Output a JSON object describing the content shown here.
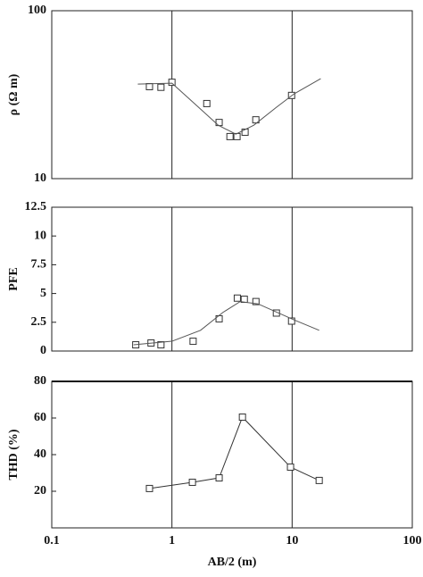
{
  "chart_data": [
    {
      "type": "scatter",
      "ylabel": "ρ (Ω m)",
      "log_x": true,
      "log_y": true,
      "xlim": [
        0.1,
        100
      ],
      "xticks": [
        0.1,
        1,
        10,
        100
      ],
      "ylim": [
        10,
        100
      ],
      "yticks": [
        10,
        100
      ],
      "grid": true,
      "series": [
        {
          "style": "markers",
          "color": "#333333",
          "x": [
            0.65,
            0.81,
            1.0,
            1.95,
            2.47,
            3.04,
            3.48,
            4.06,
            4.99,
            9.9
          ],
          "values": [
            35.3,
            35,
            37.5,
            28,
            21.6,
            17.8,
            17.8,
            18.9,
            22.4,
            31.3
          ]
        },
        {
          "style": "line",
          "color": "#555555",
          "x": [
            0.52,
            1.0,
            1.46,
            2.43,
            3.4,
            4.8,
            7.4,
            10.4,
            17.3
          ],
          "values": [
            36.6,
            37,
            29,
            20.8,
            18.4,
            20.8,
            26.6,
            32,
            39.4
          ]
        }
      ]
    },
    {
      "type": "scatter",
      "ylabel": "PFE",
      "log_x": true,
      "log_y": false,
      "xlim": [
        0.1,
        100
      ],
      "xticks": [
        0.1,
        1,
        10,
        100
      ],
      "ylim": [
        0,
        12.5
      ],
      "yticks": [
        0,
        2.5,
        5,
        7.5,
        10,
        12.5
      ],
      "grid": true,
      "series": [
        {
          "style": "markers",
          "color": "#333333",
          "x": [
            0.5,
            0.67,
            0.81,
            1.5,
            2.47,
            3.5,
            4.0,
            5.0,
            7.4,
            9.9
          ],
          "values": [
            0.54,
            0.7,
            0.54,
            0.85,
            2.8,
            4.6,
            4.5,
            4.3,
            3.3,
            2.6
          ]
        },
        {
          "style": "line",
          "color": "#555555",
          "x": [
            0.48,
            1.0,
            1.73,
            2.65,
            3.7,
            5.2,
            10.4,
            16.8
          ],
          "values": [
            0.54,
            0.85,
            1.8,
            3.35,
            4.3,
            4.1,
            2.7,
            1.8
          ]
        }
      ]
    },
    {
      "type": "line",
      "ylabel": "THD (%)",
      "xlabel": "AB/2 (m)",
      "log_x": true,
      "log_y": false,
      "xlim": [
        0.1,
        100
      ],
      "xticks": [
        0.1,
        1,
        10,
        100
      ],
      "ylim": [
        0,
        80
      ],
      "yticks": [
        20,
        40,
        60,
        80
      ],
      "grid": true,
      "series": [
        {
          "style": "markers-line",
          "color": "#333333",
          "x": [
            0.65,
            1.48,
            2.47,
            3.86,
            9.7,
            16.8
          ],
          "values": [
            21.5,
            24.9,
            27.3,
            60.5,
            33.2,
            25.9
          ]
        }
      ]
    }
  ]
}
